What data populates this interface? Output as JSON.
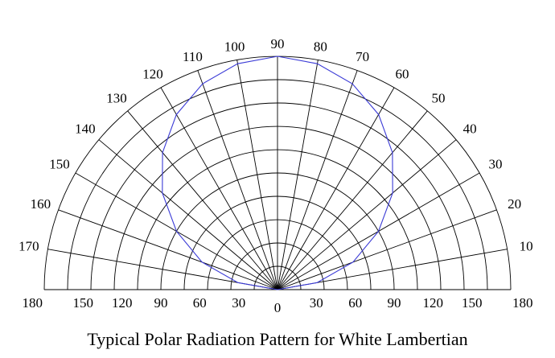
{
  "chart_data": {
    "type": "polar",
    "title": "Typical Polar Radiation Pattern for White Lambertian",
    "angle_range": [
      0,
      180
    ],
    "angle_step": 10,
    "angle_labels": [
      "10",
      "20",
      "30",
      "40",
      "50",
      "60",
      "70",
      "80",
      "90",
      "100",
      "110",
      "120",
      "130",
      "140",
      "150",
      "160",
      "170"
    ],
    "radial_range": [
      0,
      180
    ],
    "radial_labels": {
      "left": [
        "180",
        "150",
        "120",
        "90",
        "60",
        "30"
      ],
      "center": "0",
      "right": [
        "30",
        "60",
        "90",
        "120",
        "150",
        "180"
      ]
    },
    "grid": true,
    "series": [
      {
        "color": "#3a3ad6",
        "curve": "lambertian",
        "center_angle": 90,
        "points": [
          {
            "angle": 0,
            "r": 0
          },
          {
            "angle": 10,
            "r": 31
          },
          {
            "angle": 20,
            "r": 62
          },
          {
            "angle": 30,
            "r": 90
          },
          {
            "angle": 40,
            "r": 116
          },
          {
            "angle": 50,
            "r": 138
          },
          {
            "angle": 60,
            "r": 156
          },
          {
            "angle": 70,
            "r": 169
          },
          {
            "angle": 80,
            "r": 177
          },
          {
            "angle": 90,
            "r": 180
          },
          {
            "angle": 100,
            "r": 177
          },
          {
            "angle": 110,
            "r": 169
          },
          {
            "angle": 120,
            "r": 156
          },
          {
            "angle": 130,
            "r": 138
          },
          {
            "angle": 140,
            "r": 116
          },
          {
            "angle": 150,
            "r": 90
          },
          {
            "angle": 160,
            "r": 62
          },
          {
            "angle": 170,
            "r": 31
          },
          {
            "angle": 180,
            "r": 0
          }
        ]
      }
    ]
  }
}
